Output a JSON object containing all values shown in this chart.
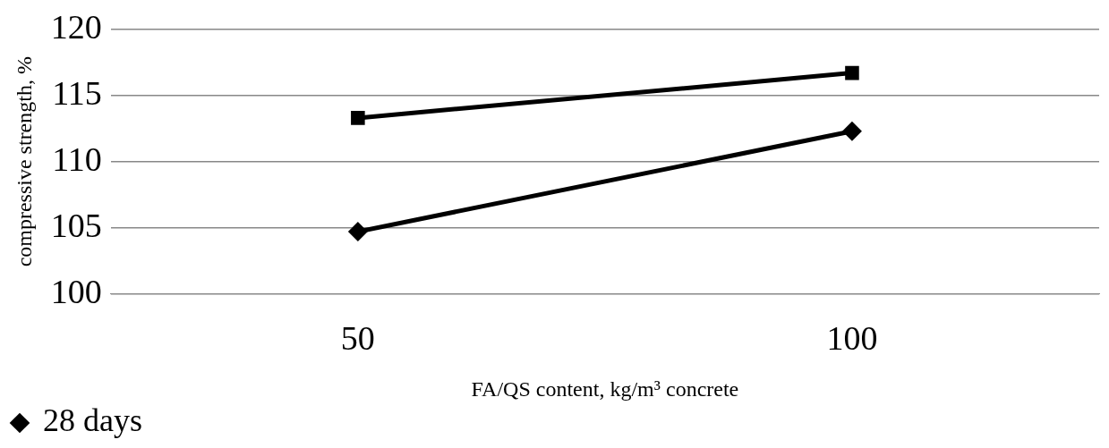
{
  "chart_data": {
    "type": "line",
    "xlabel": "FA/QS content, kg/m³ concrete",
    "ylabel": "compressive strength, %",
    "categories": [
      "50",
      "100"
    ],
    "series": [
      {
        "name": "28 days",
        "color": "#000000",
        "marker": "diamond",
        "values": [
          104.7,
          112.3
        ]
      },
      {
        "color": "#000000",
        "marker": "square",
        "values": [
          113.3,
          116.7
        ]
      }
    ],
    "ylim": [
      100,
      120
    ],
    "yticks": [
      100,
      105,
      110,
      115,
      120
    ],
    "grid": "y",
    "legend": "bottom left"
  }
}
